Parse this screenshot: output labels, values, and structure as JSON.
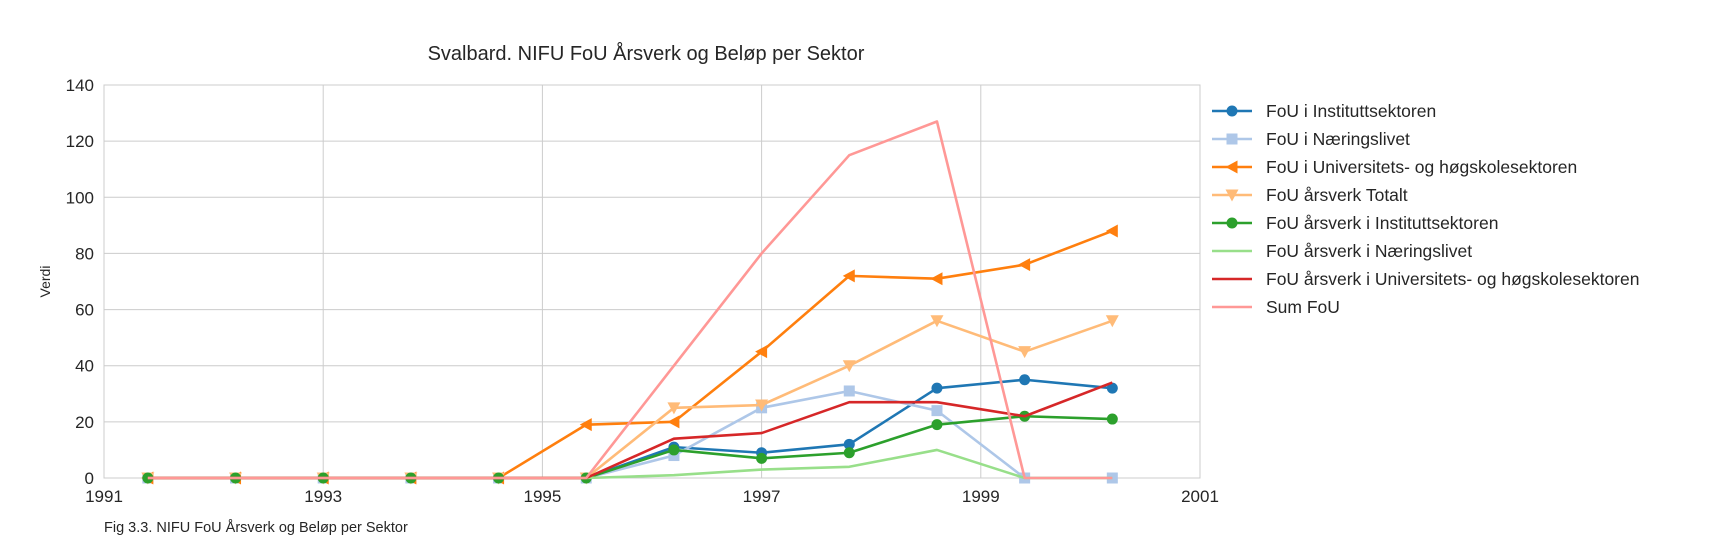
{
  "chart_data": {
    "type": "line",
    "title": "Svalbard. NIFU FoU Årsverk og Beløp per Sektor",
    "xlabel": "",
    "ylabel": "Verdi",
    "caption": "Fig 3.3. NIFU FoU Årsverk og Beløp per Sektor",
    "xlim": [
      1991,
      2001
    ],
    "ylim": [
      0,
      140
    ],
    "x_ticks": [
      1991,
      1993,
      1995,
      1997,
      1999,
      2001
    ],
    "y_ticks": [
      0,
      20,
      40,
      60,
      80,
      100,
      120,
      140
    ],
    "x_tick_labels": [
      "1991",
      "1993",
      "1995",
      "1997",
      "1999",
      "2001"
    ],
    "y_tick_labels": [
      "0",
      "20",
      "40",
      "60",
      "80",
      "100",
      "120",
      "140"
    ],
    "grid": true,
    "legend_position": "right",
    "x": [
      1991.4,
      1992.2,
      1993.0,
      1993.8,
      1994.6,
      1995.4,
      1996.2,
      1997.0,
      1997.8,
      1998.6,
      1999.4,
      2000.2
    ],
    "series": [
      {
        "name": "FoU i Instituttsektoren",
        "color": "#1f77b4",
        "marker": "circle",
        "values": [
          0,
          0,
          0,
          0,
          0,
          0,
          11,
          9,
          12,
          32,
          35,
          32
        ]
      },
      {
        "name": "FoU i Næringslivet",
        "color": "#aec7e8",
        "marker": "square",
        "values": [
          0,
          0,
          0,
          0,
          0,
          0,
          8,
          25,
          31,
          24,
          0,
          0
        ]
      },
      {
        "name": "FoU i Universitets- og høgskolesektoren",
        "color": "#ff7f0e",
        "marker": "triangle-left",
        "values": [
          0,
          0,
          0,
          0,
          0,
          19,
          20,
          45,
          72,
          71,
          76,
          88
        ]
      },
      {
        "name": "FoU årsverk Totalt",
        "color": "#ffbb78",
        "marker": "triangle-down",
        "values": [
          0,
          0,
          0,
          0,
          0,
          0,
          25,
          26,
          40,
          56,
          45,
          56
        ]
      },
      {
        "name": "FoU årsverk i Instituttsektoren",
        "color": "#2ca02c",
        "marker": "circle",
        "values": [
          0,
          0,
          0,
          0,
          0,
          0,
          10,
          7,
          9,
          19,
          22,
          21
        ]
      },
      {
        "name": "FoU årsverk i Næringslivet",
        "color": "#98df8a",
        "marker": "none",
        "values": [
          0,
          0,
          0,
          0,
          0,
          0,
          1,
          3,
          4,
          10,
          0,
          0
        ]
      },
      {
        "name": "FoU årsverk i Universitets- og høgskolesektoren",
        "color": "#d62728",
        "marker": "none",
        "values": [
          0,
          0,
          0,
          0,
          0,
          0,
          14,
          16,
          27,
          27,
          22,
          34
        ]
      },
      {
        "name": "Sum FoU",
        "color": "#ff9896",
        "marker": "none",
        "values": [
          0,
          0,
          0,
          0,
          0,
          0,
          40,
          80,
          115,
          127,
          0,
          0
        ]
      }
    ]
  }
}
